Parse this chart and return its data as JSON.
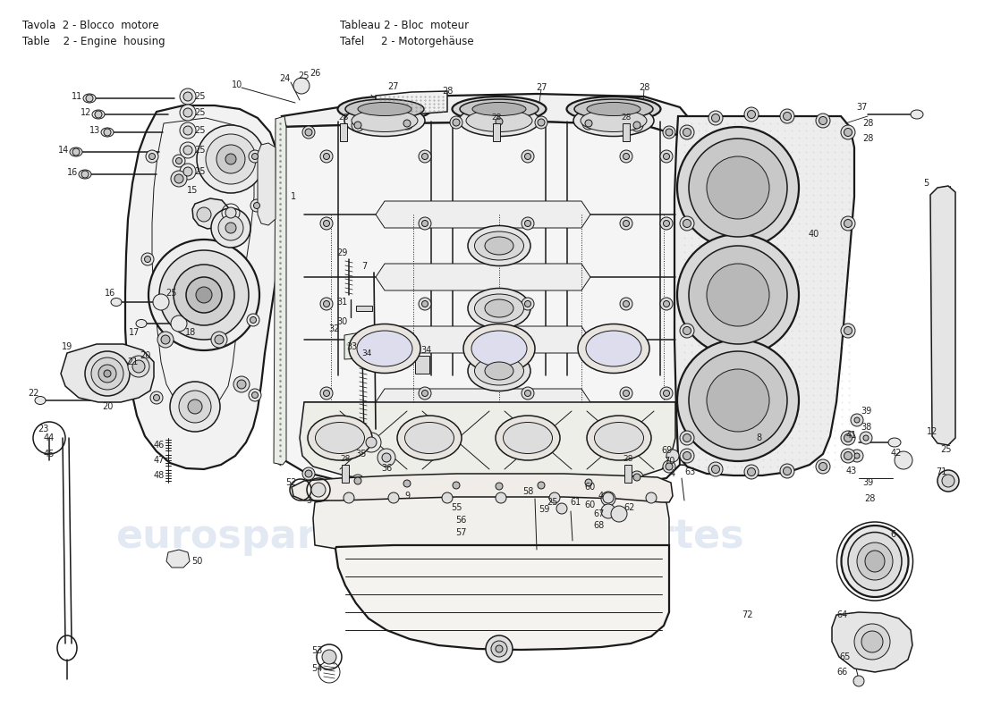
{
  "bg_color": "#ffffff",
  "line_color": "#1a1a1a",
  "text_color": "#222222",
  "watermark_color": "#c8d4e8",
  "fig_width": 11.0,
  "fig_height": 8.0,
  "header_fontsize": 8.5,
  "label_fontsize": 7.0,
  "title_left_line1": "Tavola  2 - Blocco  motore",
  "title_left_line2": "Table    2 - Engine  housing",
  "title_right_line1": "Tableau 2 - Bloc  moteur",
  "title_right_line2": "Tafel     2 - Motorgehäuse"
}
